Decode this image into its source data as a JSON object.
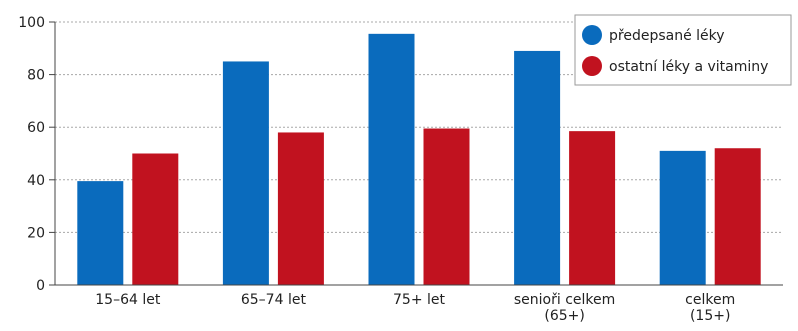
{
  "chart_data": {
    "type": "bar",
    "categories": [
      [
        "15–64 let"
      ],
      [
        "65–74 let"
      ],
      [
        "75+ let"
      ],
      [
        "senioři celkem",
        "(65+)"
      ],
      [
        "celkem",
        "(15+)"
      ]
    ],
    "series": [
      {
        "name": "předepsané léky",
        "color": "#0a6bbd",
        "values": [
          39.5,
          85,
          95.5,
          89,
          51
        ]
      },
      {
        "name": "ostatní léky a vitaminy",
        "color": "#c1121f",
        "values": [
          50,
          58,
          59.5,
          58.5,
          52
        ]
      }
    ],
    "yticks": [
      0,
      20,
      40,
      60,
      80,
      100
    ],
    "ylim": [
      0,
      100
    ],
    "grid": true,
    "legend_position": "top-right",
    "title": "",
    "xlabel": "",
    "ylabel": ""
  }
}
